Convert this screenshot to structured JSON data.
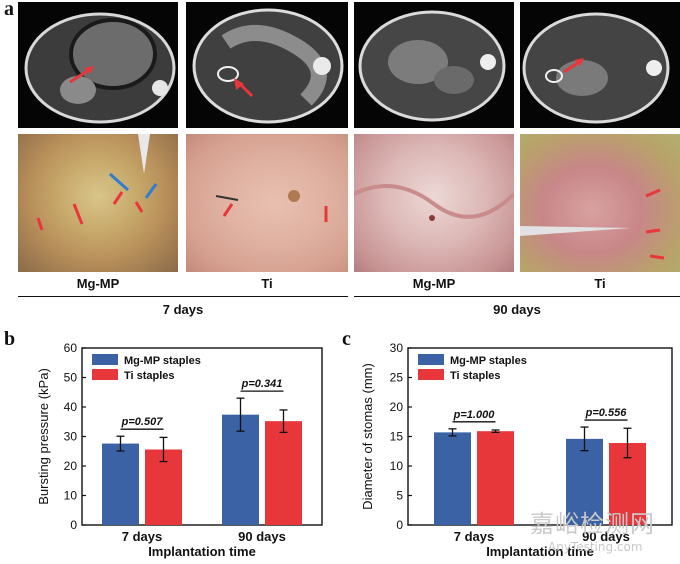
{
  "panel_a": {
    "letter": "a",
    "captions": [
      "Mg-MP",
      "Ti",
      "Mg-MP",
      "Ti"
    ],
    "groups": [
      "7 days",
      "90 days"
    ]
  },
  "colors": {
    "mg": "#3a62a5",
    "ti": "#e8373b",
    "arrow": "#e8373b",
    "arrow_blue": "#2f7fd0"
  },
  "chart_data": [
    {
      "letter": "b",
      "type": "bar",
      "title": "",
      "xlabel": "Implantation time",
      "ylabel": "Bursting pressure (kPa)",
      "categories": [
        "7 days",
        "90 days"
      ],
      "ylim": [
        0,
        60
      ],
      "yticks": [
        "0",
        "10",
        "20",
        "30",
        "40",
        "50",
        "60"
      ],
      "series": [
        {
          "name": "Mg-MP staples",
          "values": [
            27.6,
            37.4
          ],
          "errors": [
            2.5,
            5.6
          ]
        },
        {
          "name": "Ti   staples",
          "values": [
            25.6,
            35.2
          ],
          "errors": [
            4.1,
            3.8
          ]
        }
      ],
      "annotations": [
        "p=0.507",
        "p=0.341"
      ],
      "legend": "top-left"
    },
    {
      "letter": "c",
      "type": "bar",
      "title": "",
      "xlabel": "Implantation time",
      "ylabel": "Diameter of stomas (mm)",
      "categories": [
        "7 days",
        "90 days"
      ],
      "ylim": [
        0,
        30
      ],
      "yticks": [
        "0",
        "5",
        "10",
        "15",
        "20",
        "25",
        "30"
      ],
      "series": [
        {
          "name": "Mg-MP staples",
          "values": [
            15.7,
            14.6
          ],
          "errors": [
            0.6,
            2.0
          ]
        },
        {
          "name": "Ti   staples",
          "values": [
            15.9,
            13.9
          ],
          "errors": [
            0.2,
            2.5
          ]
        }
      ],
      "annotations": [
        "p=1.000",
        "p=0.556"
      ],
      "legend": "top-left"
    }
  ],
  "watermark": {
    "line1": "嘉峪检测网",
    "line2": "AnyTesting.com"
  }
}
